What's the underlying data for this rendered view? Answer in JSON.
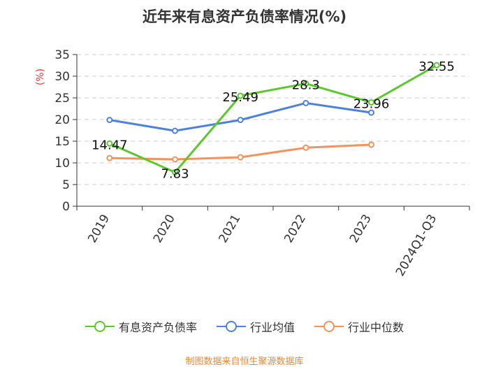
{
  "chart_data": {
    "type": "line",
    "title": "近年来有息资产负债率情况(%)",
    "ylabel": "(%)",
    "xlabel": "",
    "ylim": [
      0,
      35
    ],
    "yticks": [
      0,
      5,
      10,
      15,
      20,
      25,
      30,
      35
    ],
    "grid": true,
    "legend_position": "bottom",
    "categories": [
      "2019",
      "2020",
      "2021",
      "2022",
      "2023",
      "2024Q1-Q3"
    ],
    "series": [
      {
        "name": "有息资产负债率",
        "color": "#5cc72e",
        "values": [
          14.47,
          7.83,
          25.49,
          28.3,
          23.96,
          32.55
        ],
        "show_labels": true
      },
      {
        "name": "行业均值",
        "color": "#4e80dd",
        "values": [
          19.9,
          17.4,
          19.9,
          23.8,
          21.6,
          null
        ],
        "show_labels": false
      },
      {
        "name": "行业中位数",
        "color": "#f4925f",
        "values": [
          11.1,
          10.8,
          11.3,
          13.5,
          14.2,
          null
        ],
        "show_labels": false
      }
    ],
    "source": "制图数据来自恒生聚源数据库"
  }
}
